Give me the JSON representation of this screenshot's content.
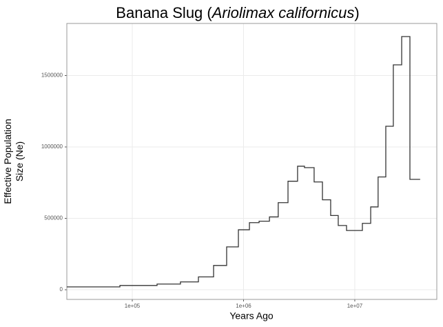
{
  "chart_data": {
    "type": "step",
    "title": [
      "Banana Slug (",
      "Ariolimax californicus",
      ")"
    ],
    "xlabel": "Years Ago",
    "ylabel": [
      "Effective Population",
      "Size (Ne)"
    ],
    "x": [
      25800,
      77400,
      167000,
      271000,
      393000,
      538000,
      705000,
      899000,
      1130000,
      1380000,
      1710000,
      2050000,
      2510000,
      3060000,
      3530000,
      4310000,
      5120000,
      6070000,
      7100000,
      8430000,
      11700000,
      13900000,
      16200000,
      19000000,
      22200000,
      26400000,
      31300000,
      38700000
    ],
    "series": [
      {
        "color": "#333333",
        "values": [
          20000,
          30000,
          40000,
          55000,
          90000,
          170000,
          300000,
          420000,
          470000,
          480000,
          510000,
          610000,
          760000,
          865000,
          855000,
          755000,
          630000,
          520000,
          450000,
          415000,
          465000,
          580000,
          790000,
          1145000,
          1575000,
          1773000,
          773000,
          773000
        ]
      }
    ],
    "xscale": "log",
    "xlim": [
      25800,
      54600000
    ],
    "xticks": [
      {
        "value": 100000,
        "label": "1e+05"
      },
      {
        "value": 1000000,
        "label": "1e+06"
      },
      {
        "value": 10000000,
        "label": "1e+07"
      }
    ],
    "ylim": [
      -67600,
      1864700
    ],
    "yticks": [
      0,
      500000,
      1000000,
      1500000
    ],
    "grid": true
  }
}
